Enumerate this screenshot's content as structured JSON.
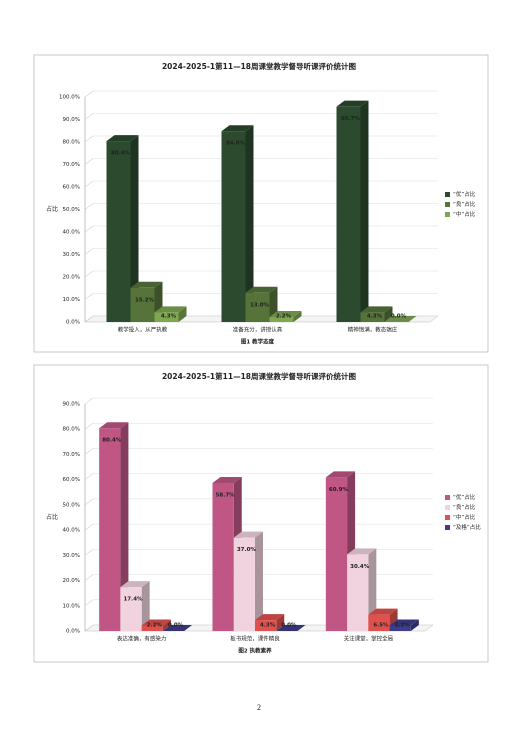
{
  "chart_data": [
    {
      "type": "bar",
      "title": "2024-2025-1第11—18周课堂教学督导听课评价统计图",
      "y_label": "占比",
      "caption": "图1 教学态度",
      "categories": [
        "教学投入，从严执教",
        "准备充分，讲授认真",
        "精神饱满，教态端庄"
      ],
      "series": [
        {
          "name": "“优”占比",
          "color": "#2b4a2e",
          "values": [
            80.4,
            84.8,
            95.7
          ],
          "value_labels": [
            "80.4%",
            "84.8%",
            "95.7%"
          ]
        },
        {
          "name": "“良”占比",
          "color": "#56733a",
          "values": [
            15.2,
            13.0,
            4.3
          ],
          "value_labels": [
            "15.2%",
            "13.0%",
            "4.3%"
          ]
        },
        {
          "name": "“中”占比",
          "color": "#7fa651",
          "values": [
            4.3,
            2.2,
            0.0
          ],
          "value_labels": [
            "4.3%",
            "2.2%",
            "0.0%"
          ]
        }
      ],
      "ylim": [
        0,
        100
      ],
      "yticks": [
        {
          "value": 0,
          "label": "0.0%"
        },
        {
          "value": 10,
          "label": "10.0%"
        },
        {
          "value": 20,
          "label": "20.0%"
        },
        {
          "value": 30,
          "label": "30.0%"
        },
        {
          "value": 40,
          "label": "40.0%"
        },
        {
          "value": 50,
          "label": "50.0%"
        },
        {
          "value": 60,
          "label": "60.0%"
        },
        {
          "value": 70,
          "label": "70.0%"
        },
        {
          "value": 80,
          "label": "80.0%"
        },
        {
          "value": 90,
          "label": "90.0%"
        },
        {
          "value": 100,
          "label": "100.0%"
        }
      ],
      "legend": "right"
    },
    {
      "type": "bar",
      "title": "2024-2025-1第11—18周课堂教学督导听课评价统计图",
      "y_label": "占比",
      "caption": "图2 执教素养",
      "categories": [
        "表达准确，有感染力",
        "板书规范，课件精良",
        "关注课堂，掌控全局"
      ],
      "series": [
        {
          "name": "“优”占比",
          "color": "#bf5684",
          "values": [
            80.4,
            58.7,
            60.9
          ],
          "value_labels": [
            "80.4%",
            "58.7%",
            "60.9%"
          ]
        },
        {
          "name": "“良”占比",
          "color": "#f0d3de",
          "values": [
            17.4,
            37.0,
            30.4
          ],
          "value_labels": [
            "17.4%",
            "37.0%",
            "30.4%"
          ]
        },
        {
          "name": "“中”占比",
          "color": "#e0514e",
          "values": [
            2.2,
            4.3,
            6.5
          ],
          "value_labels": [
            "2.2%",
            "4.3%",
            "6.5%"
          ]
        },
        {
          "name": "“及格”占比",
          "color": "#3d3d8c",
          "values": [
            0.0,
            0.0,
            2.2
          ],
          "value_labels": [
            "0.0%",
            "0.0%",
            "2.2%"
          ]
        }
      ],
      "ylim": [
        0,
        90
      ],
      "yticks": [
        {
          "value": 0,
          "label": "0.0%"
        },
        {
          "value": 10,
          "label": "10.0%"
        },
        {
          "value": 20,
          "label": "20.0%"
        },
        {
          "value": 30,
          "label": "30.0%"
        },
        {
          "value": 40,
          "label": "40.0%"
        },
        {
          "value": 50,
          "label": "50.0%"
        },
        {
          "value": 60,
          "label": "60.0%"
        },
        {
          "value": 70,
          "label": "70.0%"
        },
        {
          "value": 80,
          "label": "80.0%"
        },
        {
          "value": 90,
          "label": "90.0%"
        }
      ],
      "legend": "right"
    }
  ],
  "page_number": "2"
}
